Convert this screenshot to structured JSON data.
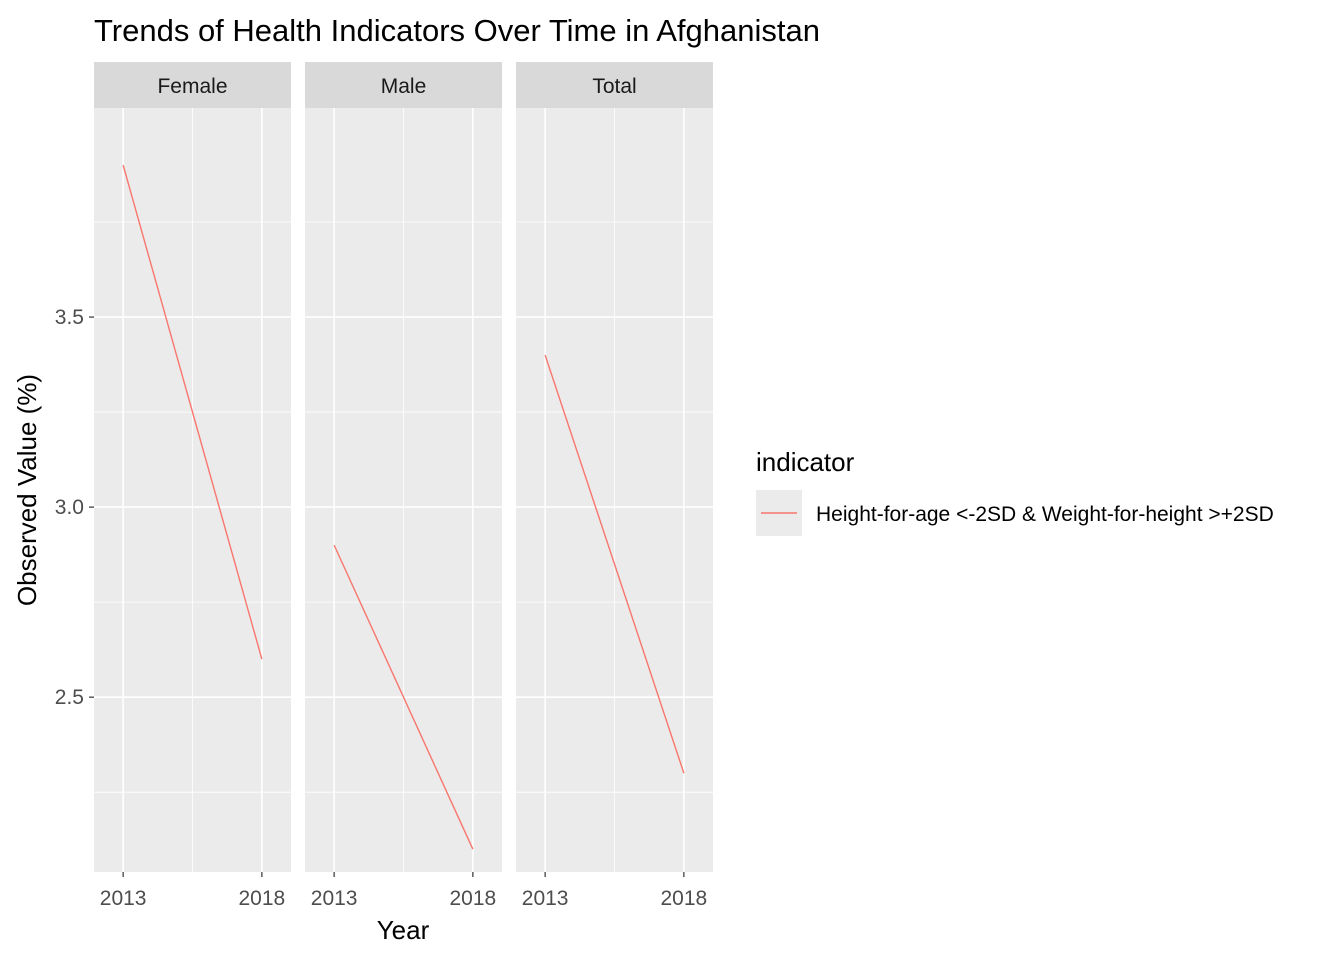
{
  "chart_data": {
    "type": "line",
    "title": "Trends of Health Indicators Over Time in Afghanistan",
    "xlabel": "Year",
    "ylabel": "Observed Value (%)",
    "x_ticks": [
      "2013",
      "2018"
    ],
    "y_ticks": [
      "2.5",
      "3.0",
      "3.5"
    ],
    "ylim": [
      2.0,
      4.0
    ],
    "grid": true,
    "legend": {
      "title": "indicator",
      "position": "right",
      "entries": [
        {
          "label": "Height-for-age <-2SD & Weight-for-height >+2SD",
          "color": "#F8766D"
        }
      ]
    },
    "facets": [
      {
        "label": "Female",
        "series": [
          {
            "name": "Height-for-age <-2SD & Weight-for-height >+2SD",
            "x": [
              2013,
              2018
            ],
            "y": [
              3.9,
              2.6
            ]
          }
        ]
      },
      {
        "label": "Male",
        "series": [
          {
            "name": "Height-for-age <-2SD & Weight-for-height >+2SD",
            "x": [
              2013,
              2018
            ],
            "y": [
              2.9,
              2.1
            ]
          }
        ]
      },
      {
        "label": "Total",
        "series": [
          {
            "name": "Height-for-age <-2SD & Weight-for-height >+2SD",
            "x": [
              2013,
              2018
            ],
            "y": [
              3.4,
              2.3
            ]
          }
        ]
      }
    ]
  }
}
